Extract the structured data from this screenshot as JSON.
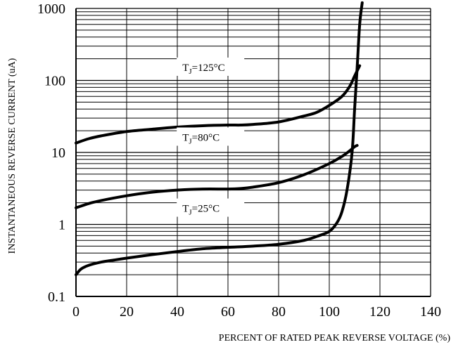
{
  "chart_data": {
    "type": "line",
    "title": "",
    "xlabel": "PERCENT OF RATED PEAK REVERSE VOLTAGE (%)",
    "ylabel": "INSTANTANEOUS REVERSE CURRENT (uA)",
    "xlim": [
      0,
      140
    ],
    "ylim": [
      0.1,
      1000
    ],
    "y_scale": "log",
    "grid": true,
    "x_ticks": [
      "0",
      "20",
      "40",
      "60",
      "80",
      "100",
      "120",
      "140"
    ],
    "y_ticks": [
      "0.1",
      "1",
      "10",
      "100",
      "1000"
    ],
    "series": [
      {
        "name": "TJ=125°C",
        "label_main": "T",
        "label_sub": "J",
        "label_rest": "=125°C",
        "color": "#000000",
        "points": [
          [
            0,
            13.5
          ],
          [
            5,
            15.5
          ],
          [
            10,
            17
          ],
          [
            20,
            19.5
          ],
          [
            30,
            21
          ],
          [
            40,
            22.5
          ],
          [
            50,
            23.5
          ],
          [
            60,
            24
          ],
          [
            65,
            24
          ],
          [
            70,
            24.5
          ],
          [
            80,
            26.5
          ],
          [
            90,
            32
          ],
          [
            95,
            36
          ],
          [
            100,
            45
          ],
          [
            105,
            60
          ],
          [
            108,
            82
          ],
          [
            110,
            115
          ],
          [
            112,
            160
          ]
        ]
      },
      {
        "name": "TJ=80°C",
        "label_main": "T",
        "label_sub": "J",
        "label_rest": "=80°C",
        "color": "#000000",
        "points": [
          [
            0,
            1.7
          ],
          [
            5,
            1.95
          ],
          [
            10,
            2.15
          ],
          [
            20,
            2.5
          ],
          [
            30,
            2.8
          ],
          [
            40,
            3.0
          ],
          [
            50,
            3.1
          ],
          [
            60,
            3.1
          ],
          [
            65,
            3.15
          ],
          [
            70,
            3.3
          ],
          [
            80,
            3.8
          ],
          [
            90,
            4.9
          ],
          [
            100,
            7.0
          ],
          [
            105,
            8.8
          ],
          [
            108,
            10.5
          ],
          [
            110,
            12.0
          ],
          [
            111,
            12.5
          ]
        ]
      },
      {
        "name": "TJ=25°C",
        "label_main": "T",
        "label_sub": "J",
        "label_rest": "=25°C",
        "color": "#000000",
        "points": [
          [
            0,
            0.2
          ],
          [
            2,
            0.24
          ],
          [
            5,
            0.27
          ],
          [
            10,
            0.3
          ],
          [
            15,
            0.32
          ],
          [
            20,
            0.34
          ],
          [
            30,
            0.38
          ],
          [
            40,
            0.42
          ],
          [
            50,
            0.46
          ],
          [
            60,
            0.48
          ],
          [
            70,
            0.5
          ],
          [
            80,
            0.53
          ],
          [
            90,
            0.6
          ],
          [
            95,
            0.68
          ],
          [
            100,
            0.8
          ],
          [
            103,
            1.05
          ],
          [
            105,
            1.5
          ],
          [
            107,
            3
          ],
          [
            109,
            10
          ],
          [
            110,
            40
          ],
          [
            111,
            150
          ],
          [
            112,
            600
          ],
          [
            113,
            1200
          ]
        ]
      }
    ]
  }
}
